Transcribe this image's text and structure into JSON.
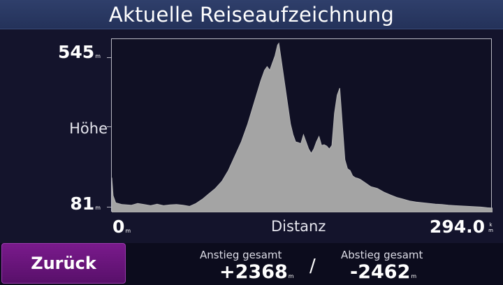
{
  "header": {
    "title": "Aktuelle Reiseaufzeichnung"
  },
  "chart_data": {
    "type": "area",
    "ylabel": "Höhe",
    "xlabel": "Distanz",
    "y_max_label": "545",
    "y_min_label": "81",
    "y_unit": "m",
    "x_min_label": "0",
    "x_min_unit": "m",
    "x_max_label": "294.0",
    "x_max_unit_top": "k",
    "x_max_unit_bottom": "m",
    "xlim": [
      0,
      294.0
    ],
    "ylim": [
      81,
      545
    ],
    "color": "#a4a4a4",
    "x": [
      0,
      1,
      3,
      8,
      15,
      20,
      25,
      30,
      35,
      40,
      45,
      50,
      55,
      60,
      65,
      70,
      75,
      80,
      85,
      90,
      95,
      100,
      105,
      110,
      115,
      118,
      120,
      122,
      124,
      126,
      128,
      129,
      130,
      132,
      134,
      136,
      138,
      140,
      142,
      144,
      146,
      148,
      150,
      152,
      154,
      156,
      158,
      160,
      162,
      164,
      166,
      168,
      170,
      172,
      174,
      176,
      178,
      180,
      182,
      184,
      186,
      188,
      190,
      192,
      194,
      196,
      198,
      200,
      205,
      210,
      215,
      220,
      225,
      230,
      235,
      240,
      245,
      250,
      255,
      260,
      265,
      270,
      275,
      280,
      285,
      290,
      294
    ],
    "y": [
      170,
      120,
      100,
      95,
      93,
      98,
      95,
      92,
      96,
      92,
      94,
      95,
      93,
      90,
      98,
      110,
      125,
      140,
      160,
      190,
      230,
      270,
      320,
      380,
      440,
      470,
      480,
      470,
      490,
      510,
      540,
      545,
      520,
      470,
      420,
      370,
      320,
      290,
      270,
      268,
      265,
      290,
      270,
      250,
      238,
      250,
      270,
      285,
      260,
      262,
      258,
      250,
      260,
      350,
      400,
      420,
      320,
      220,
      195,
      190,
      175,
      170,
      168,
      165,
      160,
      155,
      150,
      145,
      140,
      130,
      122,
      115,
      110,
      105,
      102,
      100,
      98,
      96,
      95,
      93,
      92,
      91,
      90,
      89,
      88,
      86,
      85
    ],
    "grid": false,
    "legend": "none"
  },
  "footer": {
    "back_label": "Zurück",
    "ascent_caption": "Anstieg gesamt",
    "ascent_value": "+2368",
    "ascent_unit": "m",
    "separator": "/",
    "descent_caption": "Abstieg gesamt",
    "descent_value": "-2462",
    "descent_unit": "m"
  }
}
